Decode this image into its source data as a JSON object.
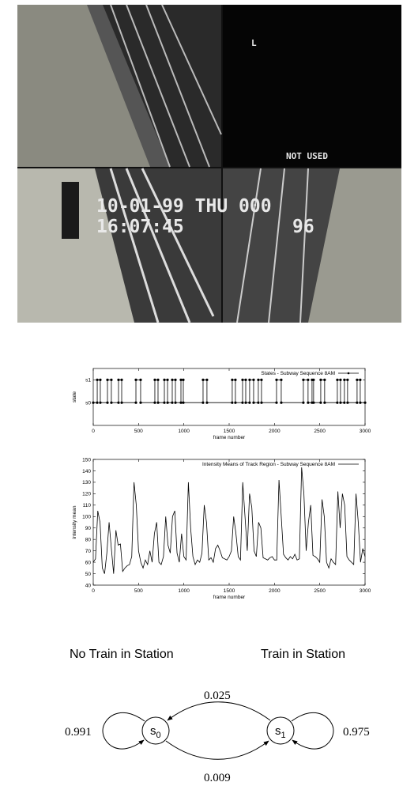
{
  "photo": {
    "corner_mark": "L",
    "label": "NOT USED",
    "date": "10-01-99 THU 000",
    "time": "16:07:45",
    "camera": "96"
  },
  "chart_data": [
    {
      "type": "line",
      "markers": true,
      "xlabel": "frame number",
      "ylabel": "state",
      "xlim": [
        0,
        3000
      ],
      "xticks": [
        0,
        500,
        1000,
        1500,
        2000,
        2500,
        3000
      ],
      "ylim": [
        -1,
        1.5
      ],
      "yticks": [
        {
          "value": 0,
          "label": "s0"
        },
        {
          "value": 1,
          "label": "s1"
        }
      ],
      "series": [
        {
          "name": "States - Subway Sequence 8AM",
          "color": "#000000",
          "x": [
            0,
            44,
            44,
            78,
            78,
            157,
            157,
            200,
            200,
            279,
            279,
            314,
            314,
            471,
            471,
            523,
            523,
            680,
            680,
            715,
            715,
            785,
            785,
            820,
            820,
            872,
            872,
            907,
            907,
            968,
            968,
            994,
            994,
            1212,
            1212,
            1255,
            1255,
            1534,
            1534,
            1569,
            1569,
            1648,
            1648,
            1683,
            1683,
            1726,
            1726,
            1770,
            1770,
            1822,
            1822,
            1857,
            1857,
            2023,
            2023,
            2075,
            2075,
            2319,
            2319,
            2371,
            2371,
            2415,
            2415,
            2432,
            2432,
            2511,
            2511,
            2554,
            2554,
            2694,
            2694,
            2729,
            2729,
            2772,
            2772,
            2807,
            2807,
            2912,
            2912,
            2947,
            2947,
            3000
          ],
          "values": [
            0,
            0,
            1,
            1,
            0,
            0,
            1,
            1,
            0,
            0,
            1,
            1,
            0,
            0,
            1,
            1,
            0,
            0,
            1,
            1,
            0,
            0,
            1,
            1,
            0,
            0,
            1,
            1,
            0,
            0,
            1,
            1,
            0,
            0,
            1,
            1,
            0,
            0,
            1,
            1,
            0,
            0,
            1,
            1,
            0,
            0,
            1,
            1,
            0,
            0,
            1,
            1,
            0,
            0,
            1,
            1,
            0,
            0,
            1,
            1,
            0,
            0,
            1,
            1,
            0,
            0,
            1,
            1,
            0,
            0,
            1,
            1,
            0,
            0,
            1,
            1,
            0,
            0,
            1,
            1,
            0,
            0
          ]
        }
      ]
    },
    {
      "type": "line",
      "markers": false,
      "xlabel": "frame number",
      "ylabel": "intensity mean",
      "xlim": [
        0,
        3000
      ],
      "xticks": [
        0,
        500,
        1000,
        1500,
        2000,
        2500,
        3000
      ],
      "ylim": [
        40,
        150
      ],
      "yticks": [
        40,
        50,
        60,
        70,
        80,
        90,
        100,
        110,
        120,
        130,
        140,
        150
      ],
      "series": [
        {
          "name": "Intensity Means of Track Region - Subway Sequence 8AM",
          "color": "#000000",
          "x": [
            0,
            25,
            50,
            75,
            100,
            125,
            150,
            175,
            200,
            225,
            250,
            275,
            300,
            325,
            350,
            375,
            400,
            425,
            450,
            475,
            500,
            525,
            550,
            575,
            600,
            625,
            650,
            675,
            700,
            725,
            750,
            775,
            800,
            825,
            850,
            875,
            900,
            925,
            950,
            975,
            1000,
            1025,
            1050,
            1075,
            1100,
            1125,
            1150,
            1175,
            1200,
            1225,
            1250,
            1275,
            1300,
            1325,
            1350,
            1375,
            1400,
            1425,
            1450,
            1475,
            1500,
            1525,
            1550,
            1575,
            1600,
            1625,
            1650,
            1675,
            1700,
            1725,
            1750,
            1775,
            1800,
            1825,
            1850,
            1875,
            1900,
            1925,
            1950,
            1975,
            2000,
            2025,
            2050,
            2075,
            2100,
            2125,
            2150,
            2175,
            2200,
            2225,
            2250,
            2275,
            2300,
            2325,
            2350,
            2375,
            2400,
            2425,
            2450,
            2475,
            2500,
            2525,
            2550,
            2575,
            2600,
            2625,
            2650,
            2675,
            2700,
            2725,
            2750,
            2775,
            2800,
            2825,
            2850,
            2875,
            2900,
            2925,
            2950,
            2975,
            3000
          ],
          "values": [
            60,
            63,
            105,
            95,
            55,
            50,
            68,
            95,
            72,
            50,
            88,
            75,
            76,
            52,
            55,
            57,
            58,
            65,
            130,
            110,
            70,
            60,
            55,
            62,
            58,
            70,
            60,
            85,
            95,
            60,
            58,
            65,
            100,
            75,
            68,
            100,
            105,
            68,
            60,
            85,
            65,
            62,
            130,
            90,
            65,
            58,
            62,
            60,
            68,
            110,
            95,
            62,
            64,
            60,
            72,
            75,
            70,
            64,
            63,
            62,
            65,
            70,
            100,
            85,
            65,
            62,
            130,
            100,
            70,
            120,
            108,
            70,
            65,
            95,
            90,
            64,
            63,
            62,
            64,
            65,
            62,
            62,
            132,
            100,
            67,
            64,
            62,
            65,
            63,
            67,
            62,
            63,
            143,
            120,
            70,
            95,
            110,
            66,
            65,
            63,
            60,
            115,
            100,
            60,
            55,
            63,
            60,
            58,
            122,
            90,
            120,
            110,
            65,
            62,
            60,
            58,
            120,
            95,
            60,
            72,
            65
          ]
        }
      ]
    }
  ],
  "diagram": {
    "left_caption": "No Train in Station",
    "right_caption": "Train in Station",
    "nodes": [
      {
        "label": "s",
        "subscript": "0"
      },
      {
        "label": "s",
        "subscript": "1"
      }
    ],
    "edges": [
      {
        "from": 0,
        "to": 0,
        "label": "0.991"
      },
      {
        "from": 1,
        "to": 0,
        "label": "0.025"
      },
      {
        "from": 0,
        "to": 1,
        "label": "0.009"
      },
      {
        "from": 1,
        "to": 1,
        "label": "0.975"
      }
    ]
  }
}
